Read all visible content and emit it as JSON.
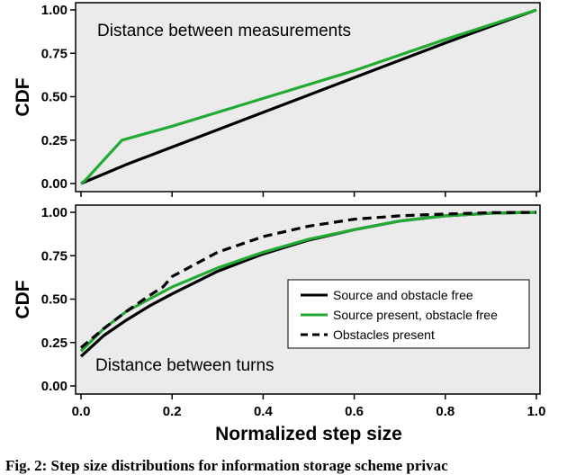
{
  "caption": "Fig. 2: Step size distributions for information storage scheme privac",
  "shared": {
    "xlabel": "Normalized step size",
    "xticks": [
      "0.0",
      "0.2",
      "0.4",
      "0.6",
      "0.8",
      "1.0"
    ],
    "yticks": [
      "0.00",
      "0.25",
      "0.50",
      "0.75",
      "1.00"
    ],
    "colors": {
      "black": "#000000",
      "green": "#22aa33",
      "panel_bg": "#ebebeb"
    }
  },
  "chart_data": [
    {
      "type": "line",
      "title": "Distance between measurements",
      "xlabel": "",
      "ylabel": "CDF",
      "xlim": [
        0,
        1
      ],
      "ylim": [
        0,
        1
      ],
      "grid": false,
      "series": [
        {
          "style": "solid",
          "color": "#000000",
          "x": [
            0,
            0.1,
            0.2,
            0.3,
            0.4,
            0.5,
            0.6,
            0.7,
            0.8,
            0.9,
            1.0
          ],
          "y": [
            0,
            0.11,
            0.21,
            0.31,
            0.41,
            0.51,
            0.61,
            0.71,
            0.81,
            0.905,
            1.0
          ]
        },
        {
          "style": "solid",
          "color": "#22aa33",
          "x": [
            0,
            0.01,
            0.09,
            0.2,
            0.4,
            0.6,
            0.8,
            1.0
          ],
          "y": [
            0,
            0.02,
            0.25,
            0.33,
            0.49,
            0.65,
            0.83,
            1.0
          ]
        }
      ]
    },
    {
      "type": "line",
      "title": "Distance between turns",
      "xlabel": "Normalized step size",
      "ylabel": "CDF",
      "xlim": [
        0,
        1
      ],
      "ylim": [
        0,
        1
      ],
      "grid": false,
      "legend": "center-right",
      "series": [
        {
          "name": "Source and obstacle free",
          "style": "solid",
          "color": "#000000",
          "x": [
            0,
            0.05,
            0.1,
            0.15,
            0.2,
            0.3,
            0.4,
            0.5,
            0.6,
            0.7,
            0.8,
            0.9,
            1.0
          ],
          "y": [
            0.17,
            0.29,
            0.38,
            0.46,
            0.53,
            0.66,
            0.76,
            0.84,
            0.9,
            0.95,
            0.98,
            0.995,
            1.0
          ]
        },
        {
          "name": "Source present, obstacle free",
          "style": "solid",
          "color": "#22aa33",
          "x": [
            0,
            0.05,
            0.1,
            0.15,
            0.2,
            0.3,
            0.4,
            0.5,
            0.6,
            0.7,
            0.8,
            0.9,
            1.0
          ],
          "y": [
            0.2,
            0.33,
            0.43,
            0.5,
            0.57,
            0.68,
            0.77,
            0.845,
            0.9,
            0.95,
            0.98,
            0.995,
            1.0
          ]
        },
        {
          "name": "Obstacles present",
          "style": "dashed",
          "color": "#000000",
          "x": [
            0,
            0.05,
            0.1,
            0.15,
            0.18,
            0.2,
            0.25,
            0.3,
            0.4,
            0.5,
            0.6,
            0.7,
            0.8,
            0.9,
            1.0
          ],
          "y": [
            0.22,
            0.33,
            0.43,
            0.52,
            0.57,
            0.63,
            0.7,
            0.77,
            0.86,
            0.92,
            0.96,
            0.98,
            0.99,
            0.998,
            1.0
          ]
        }
      ]
    }
  ]
}
